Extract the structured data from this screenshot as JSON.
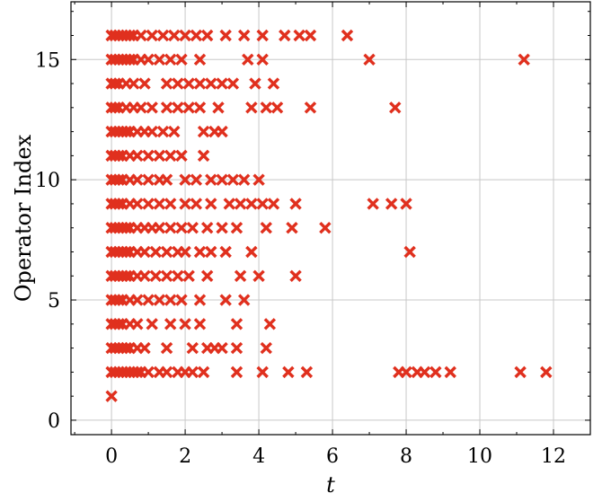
{
  "chart_data": {
    "type": "scatter",
    "title": "",
    "xlabel": "t",
    "ylabel": "Operator Index",
    "xlim": [
      -1.1,
      13.0
    ],
    "ylim": [
      -0.6,
      17.4
    ],
    "xticks": [
      0,
      2,
      4,
      6,
      8,
      10,
      12
    ],
    "yticks": [
      0,
      5,
      10,
      15
    ],
    "xtick_labels": [
      "0",
      "2",
      "4",
      "6",
      "8",
      "10",
      "12"
    ],
    "ytick_labels": [
      "0",
      "5",
      "10",
      "15"
    ],
    "grid": true,
    "marker": "x",
    "marker_color": "#e0301e",
    "series": [
      {
        "points": [
          [
            0.0,
            1
          ],
          [
            0.0,
            2
          ],
          [
            0.1,
            2
          ],
          [
            0.2,
            2
          ],
          [
            0.3,
            2
          ],
          [
            0.4,
            2
          ],
          [
            0.5,
            2
          ],
          [
            0.6,
            2
          ],
          [
            0.7,
            2
          ],
          [
            0.8,
            2
          ],
          [
            1.0,
            2
          ],
          [
            1.3,
            2
          ],
          [
            1.5,
            2
          ],
          [
            1.8,
            2
          ],
          [
            2.0,
            2
          ],
          [
            2.2,
            2
          ],
          [
            2.5,
            2
          ],
          [
            3.4,
            2
          ],
          [
            4.1,
            2
          ],
          [
            4.8,
            2
          ],
          [
            5.3,
            2
          ],
          [
            7.8,
            2
          ],
          [
            8.0,
            2
          ],
          [
            8.3,
            2
          ],
          [
            8.5,
            2
          ],
          [
            8.8,
            2
          ],
          [
            9.2,
            2
          ],
          [
            11.1,
            2
          ],
          [
            11.8,
            2
          ],
          [
            0.0,
            3
          ],
          [
            0.1,
            3
          ],
          [
            0.2,
            3
          ],
          [
            0.3,
            3
          ],
          [
            0.4,
            3
          ],
          [
            0.5,
            3
          ],
          [
            0.7,
            3
          ],
          [
            0.9,
            3
          ],
          [
            1.5,
            3
          ],
          [
            2.2,
            3
          ],
          [
            2.6,
            3
          ],
          [
            2.8,
            3
          ],
          [
            3.0,
            3
          ],
          [
            3.4,
            3
          ],
          [
            4.2,
            3
          ],
          [
            0.0,
            4
          ],
          [
            0.1,
            4
          ],
          [
            0.2,
            4
          ],
          [
            0.3,
            4
          ],
          [
            0.5,
            4
          ],
          [
            0.7,
            4
          ],
          [
            1.1,
            4
          ],
          [
            1.6,
            4
          ],
          [
            2.0,
            4
          ],
          [
            2.4,
            4
          ],
          [
            3.4,
            4
          ],
          [
            4.3,
            4
          ],
          [
            0.0,
            5
          ],
          [
            0.1,
            5
          ],
          [
            0.2,
            5
          ],
          [
            0.3,
            5
          ],
          [
            0.5,
            5
          ],
          [
            0.7,
            5
          ],
          [
            1.0,
            5
          ],
          [
            1.3,
            5
          ],
          [
            1.6,
            5
          ],
          [
            1.9,
            5
          ],
          [
            2.4,
            5
          ],
          [
            3.1,
            5
          ],
          [
            3.6,
            5
          ],
          [
            0.0,
            6
          ],
          [
            0.1,
            6
          ],
          [
            0.2,
            6
          ],
          [
            0.3,
            6
          ],
          [
            0.4,
            6
          ],
          [
            0.5,
            6
          ],
          [
            0.7,
            6
          ],
          [
            0.9,
            6
          ],
          [
            1.2,
            6
          ],
          [
            1.5,
            6
          ],
          [
            1.8,
            6
          ],
          [
            2.1,
            6
          ],
          [
            2.6,
            6
          ],
          [
            3.5,
            6
          ],
          [
            4.0,
            6
          ],
          [
            5.0,
            6
          ],
          [
            0.0,
            7
          ],
          [
            0.1,
            7
          ],
          [
            0.2,
            7
          ],
          [
            0.3,
            7
          ],
          [
            0.4,
            7
          ],
          [
            0.5,
            7
          ],
          [
            0.7,
            7
          ],
          [
            0.9,
            7
          ],
          [
            1.2,
            7
          ],
          [
            1.5,
            7
          ],
          [
            1.8,
            7
          ],
          [
            2.0,
            7
          ],
          [
            2.4,
            7
          ],
          [
            2.7,
            7
          ],
          [
            3.1,
            7
          ],
          [
            3.8,
            7
          ],
          [
            8.1,
            7
          ],
          [
            0.0,
            8
          ],
          [
            0.1,
            8
          ],
          [
            0.2,
            8
          ],
          [
            0.3,
            8
          ],
          [
            0.4,
            8
          ],
          [
            0.5,
            8
          ],
          [
            0.7,
            8
          ],
          [
            0.9,
            8
          ],
          [
            1.1,
            8
          ],
          [
            1.3,
            8
          ],
          [
            1.6,
            8
          ],
          [
            1.9,
            8
          ],
          [
            2.2,
            8
          ],
          [
            2.6,
            8
          ],
          [
            3.0,
            8
          ],
          [
            3.4,
            8
          ],
          [
            4.2,
            8
          ],
          [
            4.9,
            8
          ],
          [
            5.8,
            8
          ],
          [
            0.0,
            9
          ],
          [
            0.1,
            9
          ],
          [
            0.2,
            9
          ],
          [
            0.3,
            9
          ],
          [
            0.5,
            9
          ],
          [
            0.7,
            9
          ],
          [
            1.0,
            9
          ],
          [
            1.3,
            9
          ],
          [
            1.6,
            9
          ],
          [
            2.0,
            9
          ],
          [
            2.3,
            9
          ],
          [
            2.7,
            9
          ],
          [
            3.2,
            9
          ],
          [
            3.5,
            9
          ],
          [
            3.8,
            9
          ],
          [
            4.1,
            9
          ],
          [
            4.4,
            9
          ],
          [
            5.0,
            9
          ],
          [
            7.1,
            9
          ],
          [
            7.6,
            9
          ],
          [
            8.0,
            9
          ],
          [
            0.0,
            10
          ],
          [
            0.1,
            10
          ],
          [
            0.2,
            10
          ],
          [
            0.3,
            10
          ],
          [
            0.5,
            10
          ],
          [
            0.7,
            10
          ],
          [
            1.0,
            10
          ],
          [
            1.3,
            10
          ],
          [
            1.5,
            10
          ],
          [
            2.0,
            10
          ],
          [
            2.3,
            10
          ],
          [
            2.7,
            10
          ],
          [
            3.0,
            10
          ],
          [
            3.3,
            10
          ],
          [
            3.6,
            10
          ],
          [
            4.0,
            10
          ],
          [
            0.0,
            11
          ],
          [
            0.1,
            11
          ],
          [
            0.2,
            11
          ],
          [
            0.3,
            11
          ],
          [
            0.5,
            11
          ],
          [
            0.7,
            11
          ],
          [
            1.0,
            11
          ],
          [
            1.3,
            11
          ],
          [
            1.6,
            11
          ],
          [
            1.9,
            11
          ],
          [
            2.5,
            11
          ],
          [
            0.0,
            12
          ],
          [
            0.1,
            12
          ],
          [
            0.2,
            12
          ],
          [
            0.3,
            12
          ],
          [
            0.4,
            12
          ],
          [
            0.5,
            12
          ],
          [
            0.7,
            12
          ],
          [
            0.9,
            12
          ],
          [
            1.1,
            12
          ],
          [
            1.4,
            12
          ],
          [
            1.7,
            12
          ],
          [
            2.5,
            12
          ],
          [
            2.8,
            12
          ],
          [
            3.0,
            12
          ],
          [
            0.0,
            13
          ],
          [
            0.1,
            13
          ],
          [
            0.2,
            13
          ],
          [
            0.4,
            13
          ],
          [
            0.6,
            13
          ],
          [
            0.8,
            13
          ],
          [
            1.1,
            13
          ],
          [
            1.5,
            13
          ],
          [
            1.8,
            13
          ],
          [
            2.1,
            13
          ],
          [
            2.4,
            13
          ],
          [
            2.9,
            13
          ],
          [
            3.8,
            13
          ],
          [
            4.2,
            13
          ],
          [
            4.5,
            13
          ],
          [
            5.4,
            13
          ],
          [
            7.7,
            13
          ],
          [
            0.0,
            14
          ],
          [
            0.1,
            14
          ],
          [
            0.2,
            14
          ],
          [
            0.4,
            14
          ],
          [
            0.6,
            14
          ],
          [
            0.9,
            14
          ],
          [
            1.5,
            14
          ],
          [
            1.8,
            14
          ],
          [
            2.1,
            14
          ],
          [
            2.4,
            14
          ],
          [
            2.7,
            14
          ],
          [
            3.0,
            14
          ],
          [
            3.3,
            14
          ],
          [
            3.9,
            14
          ],
          [
            4.4,
            14
          ],
          [
            0.0,
            15
          ],
          [
            0.1,
            15
          ],
          [
            0.2,
            15
          ],
          [
            0.3,
            15
          ],
          [
            0.4,
            15
          ],
          [
            0.5,
            15
          ],
          [
            0.6,
            15
          ],
          [
            0.8,
            15
          ],
          [
            1.0,
            15
          ],
          [
            1.3,
            15
          ],
          [
            1.6,
            15
          ],
          [
            1.9,
            15
          ],
          [
            2.4,
            15
          ],
          [
            3.7,
            15
          ],
          [
            4.1,
            15
          ],
          [
            7.0,
            15
          ],
          [
            11.2,
            15
          ],
          [
            0.0,
            16
          ],
          [
            0.1,
            16
          ],
          [
            0.2,
            16
          ],
          [
            0.3,
            16
          ],
          [
            0.4,
            16
          ],
          [
            0.5,
            16
          ],
          [
            0.6,
            16
          ],
          [
            0.8,
            16
          ],
          [
            1.1,
            16
          ],
          [
            1.4,
            16
          ],
          [
            1.7,
            16
          ],
          [
            2.0,
            16
          ],
          [
            2.3,
            16
          ],
          [
            2.6,
            16
          ],
          [
            3.1,
            16
          ],
          [
            3.6,
            16
          ],
          [
            4.1,
            16
          ],
          [
            4.7,
            16
          ],
          [
            5.1,
            16
          ],
          [
            5.4,
            16
          ],
          [
            6.4,
            16
          ]
        ]
      }
    ]
  }
}
